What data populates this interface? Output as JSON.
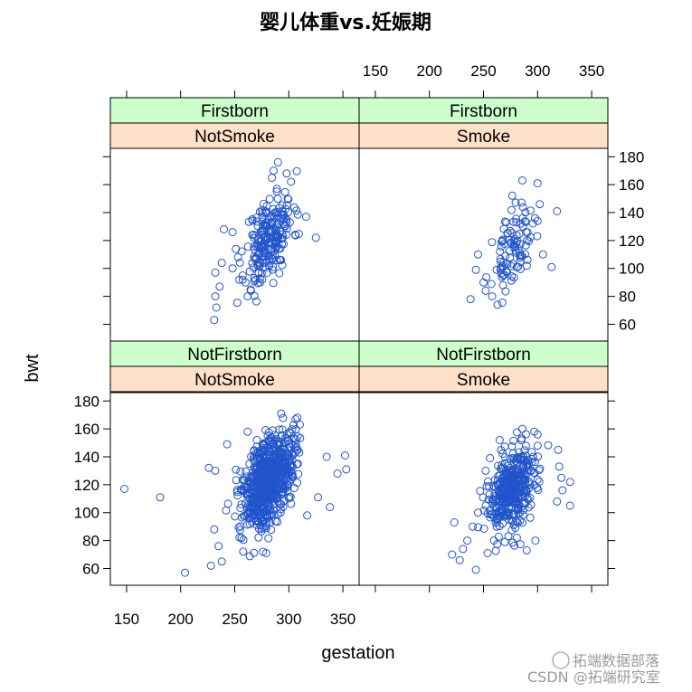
{
  "chart_data": {
    "type": "scatter",
    "title": "婴儿体重vs.妊娠期",
    "xlabel": "gestation",
    "ylabel": "bwt",
    "xlim": [
      135,
      365
    ],
    "ylim": [
      48,
      186
    ],
    "x_ticks": [
      150,
      200,
      250,
      300,
      350
    ],
    "y_ticks": [
      60,
      80,
      100,
      120,
      140,
      160,
      180
    ],
    "point_color": "#2255cc",
    "strip_colors": {
      "parity": "#ccffcc",
      "smoke": "#ffe0c8"
    },
    "panels": [
      {
        "parity": "Firstborn",
        "smoke": "NotSmoke",
        "row": 0,
        "col": 0,
        "cloud": {
          "n": 220,
          "cx": 282,
          "sx": 11,
          "cy": 122,
          "sy": 17,
          "seed": 11
        },
        "points": [
          [
            231,
            63
          ],
          [
            233,
            72
          ],
          [
            232,
            80
          ],
          [
            236,
            87
          ],
          [
            232,
            97
          ],
          [
            238,
            104
          ],
          [
            248,
            100
          ],
          [
            253,
            108
          ],
          [
            240,
            128
          ],
          [
            248,
            126
          ],
          [
            262,
            80
          ],
          [
            265,
            84
          ],
          [
            268,
            93
          ],
          [
            276,
            104
          ],
          [
            290,
            176
          ],
          [
            298,
            168
          ],
          [
            286,
            170
          ],
          [
            302,
            162
          ],
          [
            316,
            137
          ],
          [
            325,
            122
          ]
        ]
      },
      {
        "parity": "Firstborn",
        "smoke": "Smoke",
        "row": 0,
        "col": 1,
        "cloud": {
          "n": 95,
          "cx": 277,
          "sx": 9,
          "cy": 114,
          "sy": 14,
          "seed": 23
        },
        "points": [
          [
            238,
            78
          ],
          [
            243,
            99
          ],
          [
            245,
            110
          ],
          [
            250,
            90
          ],
          [
            252,
            84
          ],
          [
            258,
            80
          ],
          [
            263,
            74
          ],
          [
            268,
            88
          ],
          [
            286,
            163
          ],
          [
            300,
            161
          ],
          [
            302,
            146
          ],
          [
            318,
            141
          ],
          [
            313,
            101
          ],
          [
            305,
            110
          ],
          [
            300,
            134
          ]
        ]
      },
      {
        "parity": "NotFirstborn",
        "smoke": "NotSmoke",
        "row": 1,
        "col": 0,
        "cloud": {
          "n": 700,
          "cx": 281,
          "sx": 12,
          "cy": 124,
          "sy": 17,
          "seed": 37
        },
        "points": [
          [
            148,
            117
          ],
          [
            181,
            111
          ],
          [
            204,
            57
          ],
          [
            228,
            62
          ],
          [
            231,
            88
          ],
          [
            235,
            76
          ],
          [
            238,
            65
          ],
          [
            226,
            132
          ],
          [
            232,
            130
          ],
          [
            243,
            149
          ],
          [
            262,
            158
          ],
          [
            276,
            72
          ],
          [
            279,
            71
          ],
          [
            293,
            171
          ],
          [
            308,
            168
          ],
          [
            327,
            111
          ],
          [
            335,
            140
          ],
          [
            338,
            104
          ],
          [
            345,
            128
          ],
          [
            352,
            141
          ],
          [
            353,
            131
          ],
          [
            317,
            98
          ]
        ]
      },
      {
        "parity": "NotFirstborn",
        "smoke": "Smoke",
        "row": 1,
        "col": 1,
        "cloud": {
          "n": 390,
          "cx": 277,
          "sx": 12,
          "cy": 116,
          "sy": 16,
          "seed": 53
        },
        "points": [
          [
            221,
            70
          ],
          [
            223,
            93
          ],
          [
            228,
            66
          ],
          [
            231,
            74
          ],
          [
            235,
            80
          ],
          [
            240,
            90
          ],
          [
            245,
            100
          ],
          [
            243,
            59
          ],
          [
            252,
            130
          ],
          [
            256,
            139
          ],
          [
            265,
            152
          ],
          [
            286,
            160
          ],
          [
            297,
            158
          ],
          [
            300,
            156
          ],
          [
            300,
            148
          ],
          [
            319,
            145
          ],
          [
            320,
            133
          ],
          [
            318,
            108
          ],
          [
            323,
            116
          ],
          [
            322,
            125
          ],
          [
            330,
            122
          ],
          [
            330,
            105
          ],
          [
            290,
            73
          ],
          [
            298,
            80
          ]
        ]
      }
    ]
  },
  "watermark": {
    "line1": "拓端数据部落",
    "line2": "CSDN @拓端研究室"
  }
}
